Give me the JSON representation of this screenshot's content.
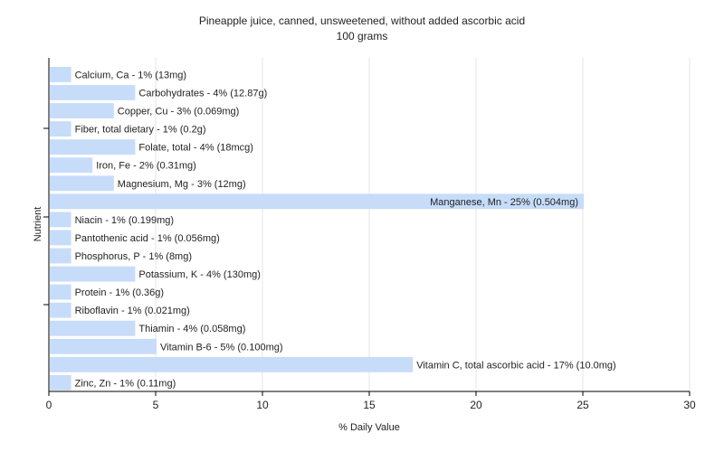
{
  "chart_data": {
    "type": "bar",
    "orientation": "horizontal",
    "title": "Pineapple juice, canned, unsweetened, without added ascorbic acid",
    "subtitle": "100 grams",
    "xlabel": "% Daily Value",
    "ylabel": "Nutrient",
    "xlim": [
      0,
      30
    ],
    "xticks": [
      0,
      5,
      10,
      15,
      20,
      25,
      30
    ],
    "grid": true,
    "bar_color": "#c6dcf9",
    "grid_color": "#e6e6e6",
    "categories": [
      "Calcium, Ca",
      "Carbohydrates",
      "Copper, Cu",
      "Fiber, total dietary",
      "Folate, total",
      "Iron, Fe",
      "Magnesium, Mg",
      "Manganese, Mn",
      "Niacin",
      "Pantothenic acid",
      "Phosphorus, P",
      "Potassium, K",
      "Protein",
      "Riboflavin",
      "Thiamin",
      "Vitamin B-6",
      "Vitamin C, total ascorbic acid",
      "Zinc, Zn"
    ],
    "values": [
      1,
      4,
      3,
      1,
      4,
      2,
      3,
      25,
      1,
      1,
      1,
      4,
      1,
      1,
      4,
      5,
      17,
      1
    ],
    "labels": [
      "Calcium, Ca - 1% (13mg)",
      "Carbohydrates - 4% (12.87g)",
      "Copper, Cu - 3% (0.069mg)",
      "Fiber, total dietary - 1% (0.2g)",
      "Folate, total - 4% (18mcg)",
      "Iron, Fe - 2% (0.31mg)",
      "Magnesium, Mg - 3% (12mg)",
      "Manganese, Mn - 25% (0.504mg)",
      "Niacin - 1% (0.199mg)",
      "Pantothenic acid - 1% (0.056mg)",
      "Phosphorus, P - 1% (8mg)",
      "Potassium, K - 4% (130mg)",
      "Protein - 1% (0.36g)",
      "Riboflavin - 1% (0.021mg)",
      "Thiamin - 4% (0.058mg)",
      "Vitamin B-6 - 5% (0.100mg)",
      "Vitamin C, total ascorbic acid - 17% (10.0mg)",
      "Zinc, Zn - 1% (0.11mg)"
    ]
  }
}
